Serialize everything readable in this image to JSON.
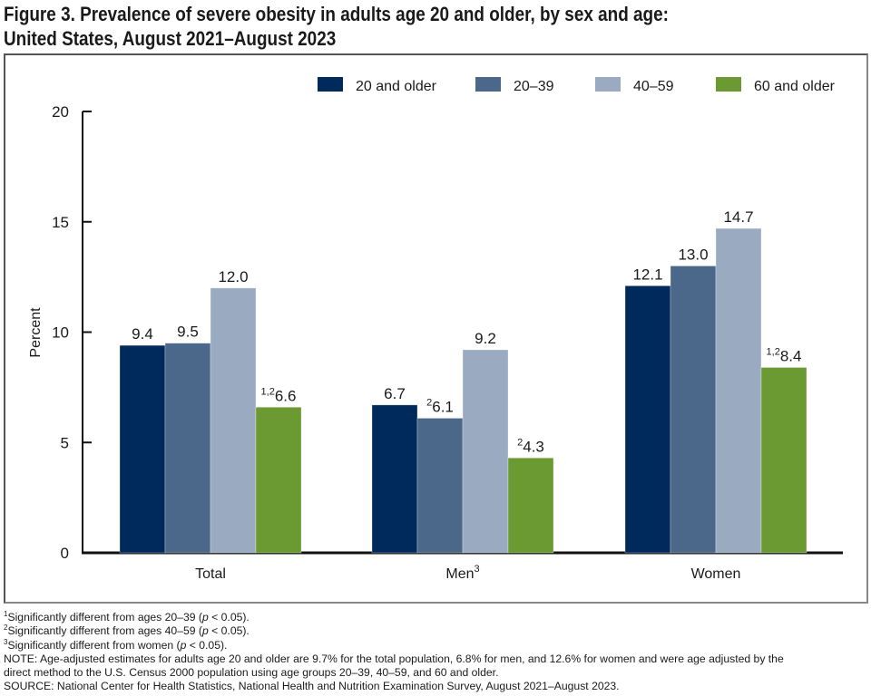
{
  "title_line1": "Figure 3. Prevalence of severe obesity in adults age 20 and older, by sex and age:",
  "title_line2": "United States, August 2021–August 2023",
  "chart_data": {
    "type": "bar",
    "title": "Figure 3. Prevalence of severe obesity in adults age 20 and older, by sex and age: United States, August 2021–August 2023",
    "xlabel": "",
    "ylabel": "Percent",
    "ylim": [
      0,
      20
    ],
    "yticks": [
      0,
      5,
      10,
      15,
      20
    ],
    "grid": false,
    "legend_position": "top-right",
    "categories": [
      "Total",
      "Men",
      "Women"
    ],
    "category_superscripts": [
      "",
      "3",
      ""
    ],
    "series": [
      {
        "name": "20 and older",
        "color": "#002a5c",
        "values": [
          9.4,
          6.7,
          12.1
        ],
        "label_superscripts": [
          "",
          "",
          ""
        ]
      },
      {
        "name": "20–39",
        "color": "#4b6789",
        "values": [
          9.5,
          6.1,
          13.0
        ],
        "label_superscripts": [
          "",
          "2",
          ""
        ]
      },
      {
        "name": "40–59",
        "color": "#9aabc1",
        "values": [
          12.0,
          9.2,
          14.7
        ],
        "label_superscripts": [
          "",
          "",
          ""
        ]
      },
      {
        "name": "60 and older",
        "color": "#6b9a33",
        "values": [
          6.6,
          4.3,
          8.4
        ],
        "label_superscripts": [
          "1,2",
          "2",
          "1,2"
        ]
      }
    ]
  },
  "footnotes": [
    {
      "mark": "1",
      "pre": "Significantly different from ages 20–39 (",
      "p": "p",
      "post": " < 0.05)."
    },
    {
      "mark": "2",
      "pre": "Significantly different from ages 40–59 (",
      "p": "p",
      "post": " < 0.05)."
    },
    {
      "mark": "3",
      "pre": "Significantly different from women (",
      "p": "p",
      "post": " < 0.05)."
    }
  ],
  "note_line1": "NOTE: Age-adjusted estimates for adults age 20 and older are 9.7% for the total population, 6.8% for men, and 12.6% for women and were age adjusted by the",
  "note_line2": "direct method to the U.S. Census 2000 population using age groups 20–39, 40–59, and 60 and older.",
  "source": "SOURCE: National Center for Health Statistics, National Health and Nutrition Examination Survey, August 2021–August 2023."
}
